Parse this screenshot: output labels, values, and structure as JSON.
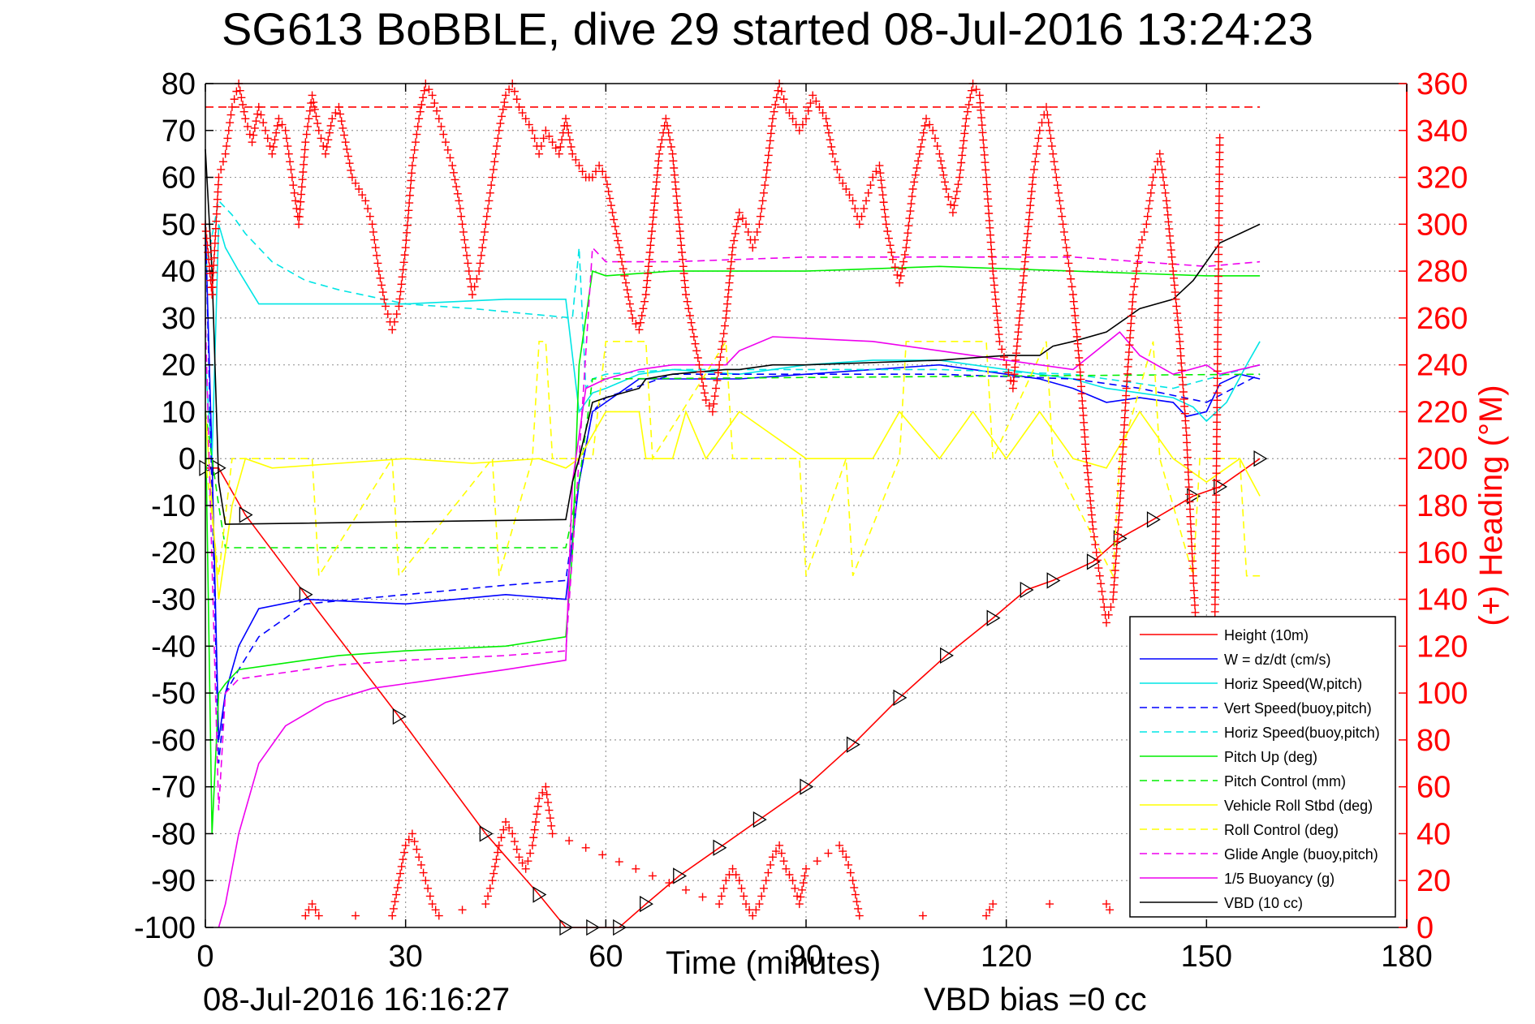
{
  "chart_data": {
    "type": "line",
    "title": "SG613 BoBBLE, dive 29 started 08-Jul-2016 13:24:23",
    "xlabel": "Time (minutes)",
    "ylabel": "",
    "y2label": "(+) Heading (°M)",
    "xlim": [
      0,
      180
    ],
    "ylim": [
      -100,
      80
    ],
    "y2lim": [
      0,
      360
    ],
    "xticks": [
      "0",
      "30",
      "60",
      "90",
      "120",
      "150",
      "180"
    ],
    "yticks": [
      "80",
      "70",
      "60",
      "50",
      "40",
      "30",
      "20",
      "10",
      "0",
      "-10",
      "-20",
      "-30",
      "-40",
      "-50",
      "-60",
      "-70",
      "-80",
      "-90",
      "-100"
    ],
    "y2ticks": [
      "360",
      "340",
      "320",
      "300",
      "280",
      "260",
      "240",
      "220",
      "200",
      "180",
      "160",
      "140",
      "120",
      "100",
      "80",
      "60",
      "40",
      "20",
      "0"
    ],
    "grid": true,
    "legend_position": "bottom-right",
    "footer_time": "08-Jul-2016 16:16:27",
    "footer_bias": "VBD bias =0 cc",
    "series": [
      {
        "name": "Height (10m)",
        "color": "#ff0000",
        "style": "solid",
        "marker": "triangle",
        "x": [
          0,
          2,
          6,
          15,
          29,
          42,
          50,
          54,
          58,
          62,
          66,
          71,
          77,
          83,
          90,
          97,
          104,
          111,
          118,
          123,
          127,
          133,
          137,
          142,
          148,
          152,
          158
        ],
        "y": [
          -2,
          -2,
          -12,
          -29,
          -55,
          -80,
          -93,
          -100,
          -100,
          -100,
          -95,
          -89,
          -83,
          -77,
          -70,
          -61,
          -51,
          -42,
          -34,
          -28,
          -26,
          -22,
          -17,
          -13,
          -8,
          -6,
          0
        ]
      },
      {
        "name": "W = dz/dt (cm/s)",
        "color": "#0000ff",
        "style": "solid",
        "x": [
          0,
          1,
          2,
          3,
          5,
          8,
          15,
          30,
          45,
          54,
          56,
          58,
          60,
          65,
          70,
          80,
          90,
          100,
          110,
          120,
          125,
          130,
          135,
          140,
          145,
          147,
          150,
          152,
          155,
          158
        ],
        "y": [
          50,
          0,
          -60,
          -50,
          -40,
          -32,
          -30,
          -31,
          -29,
          -30,
          -5,
          10,
          12,
          17,
          17,
          17,
          18,
          19,
          20,
          18,
          17,
          15,
          12,
          13,
          12,
          9,
          10,
          16,
          18,
          17
        ]
      },
      {
        "name": "Horiz Speed(W,pitch)",
        "color": "#00e5e5",
        "style": "solid",
        "x": [
          0,
          1,
          2,
          3,
          5,
          8,
          15,
          30,
          45,
          54,
          56,
          58,
          60,
          65,
          70,
          80,
          90,
          100,
          110,
          120,
          125,
          130,
          135,
          140,
          145,
          148,
          150,
          153,
          156,
          158
        ],
        "y": [
          20,
          0,
          50,
          45,
          40,
          33,
          33,
          33,
          34,
          34,
          10,
          14,
          15,
          18,
          19,
          18,
          20,
          21,
          21,
          19,
          18,
          17,
          15,
          14,
          13,
          11,
          8,
          12,
          20,
          25
        ]
      },
      {
        "name": "Vert Speed(buoy,pitch)",
        "color": "#0000ff",
        "style": "dashed",
        "x": [
          0,
          2,
          3,
          5,
          8,
          15,
          30,
          45,
          54,
          56,
          58,
          60,
          70,
          90,
          110,
          130,
          140,
          150,
          158
        ],
        "y": [
          50,
          -65,
          -50,
          -45,
          -38,
          -31,
          -29,
          -27,
          -26,
          -5,
          10,
          13,
          18,
          18,
          18,
          17,
          15,
          12,
          18
        ]
      },
      {
        "name": "Horiz Speed(buoy,pitch)",
        "color": "#00e5e5",
        "style": "dashed",
        "x": [
          0,
          2,
          4,
          6,
          10,
          15,
          20,
          30,
          40,
          55,
          56,
          57,
          58,
          60,
          70,
          90,
          110,
          130,
          145,
          158
        ],
        "y": [
          40,
          55,
          52,
          48,
          42,
          38,
          36,
          33,
          32,
          30,
          45,
          15,
          17,
          18,
          19,
          19,
          19,
          18,
          15,
          20
        ]
      },
      {
        "name": "Pitch Up (deg)",
        "color": "#00ee00",
        "style": "solid",
        "x": [
          0,
          1,
          2,
          3,
          5,
          10,
          20,
          30,
          45,
          54,
          55,
          56,
          58,
          60,
          70,
          90,
          110,
          130,
          150,
          158
        ],
        "y": [
          10,
          -80,
          -50,
          -48,
          -45,
          -44,
          -42,
          -41,
          -40,
          -38,
          -20,
          20,
          40,
          39,
          40,
          40,
          41,
          40,
          39,
          39
        ]
      },
      {
        "name": "Pitch Control (mm)",
        "color": "#00ee00",
        "style": "dashed",
        "x": [
          0,
          2,
          3,
          54,
          56,
          58,
          60,
          158
        ],
        "y": [
          10,
          -10,
          -19,
          -19,
          -5,
          17,
          17,
          18
        ]
      },
      {
        "name": "Vehicle Roll Stbd (deg)",
        "color": "#ffff00",
        "style": "solid",
        "x": [
          0,
          2,
          4,
          6,
          10,
          20,
          30,
          40,
          50,
          54,
          56,
          60,
          65,
          66,
          70,
          72,
          75,
          80,
          90,
          100,
          104,
          110,
          115,
          120,
          125,
          130,
          135,
          140,
          145,
          150,
          155,
          158
        ],
        "y": [
          10,
          -30,
          -10,
          0,
          -2,
          -1,
          0,
          -1,
          0,
          -2,
          0,
          10,
          10,
          0,
          0,
          10,
          0,
          10,
          0,
          0,
          10,
          0,
          10,
          0,
          10,
          0,
          -2,
          10,
          0,
          -5,
          0,
          -8
        ]
      },
      {
        "name": "Roll Control (deg)",
        "color": "#ffff00",
        "style": "dashed",
        "x": [
          0,
          2,
          4,
          16,
          17,
          28,
          29,
          43,
          44,
          49,
          50,
          51,
          52,
          58,
          60,
          66,
          67,
          78,
          79,
          89,
          90,
          96,
          97,
          104,
          105,
          117,
          118,
          126,
          127,
          136,
          137,
          142,
          143,
          148,
          149,
          155,
          156,
          158
        ],
        "y": [
          0,
          -25,
          0,
          0,
          -25,
          0,
          -25,
          0,
          -25,
          0,
          25,
          25,
          0,
          0,
          25,
          25,
          0,
          25,
          0,
          0,
          -25,
          0,
          -25,
          0,
          25,
          25,
          0,
          25,
          0,
          -25,
          0,
          25,
          0,
          -25,
          0,
          0,
          -25,
          -25
        ]
      },
      {
        "name": "Glide Angle (buoy,pitch)",
        "color": "#ee00ee",
        "style": "dashed",
        "x": [
          0,
          2,
          3,
          5,
          10,
          20,
          30,
          45,
          54,
          56,
          58,
          60,
          70,
          90,
          110,
          130,
          150,
          158
        ],
        "y": [
          30,
          -75,
          -50,
          -47,
          -46,
          -44,
          -43,
          -42,
          -41,
          0,
          45,
          42,
          42,
          43,
          43,
          43,
          41,
          42
        ]
      },
      {
        "name": "1/5 Buoyancy (g)",
        "color": "#ee00ee",
        "style": "solid",
        "x": [
          2,
          3,
          5,
          8,
          12,
          18,
          25,
          35,
          45,
          54,
          55,
          57,
          60,
          65,
          70,
          78,
          80,
          85,
          100,
          110,
          120,
          130,
          137,
          140,
          145,
          150,
          152,
          158
        ],
        "y": [
          -100,
          -95,
          -80,
          -65,
          -57,
          -52,
          -49,
          -47,
          -45,
          -43,
          -5,
          15,
          17,
          19,
          20,
          20,
          23,
          26,
          25,
          23,
          21,
          19,
          27,
          22,
          18,
          20,
          18,
          20
        ]
      },
      {
        "name": "VBD (10 cc)",
        "color": "#000000",
        "style": "solid",
        "x": [
          0,
          1,
          2,
          3,
          54,
          55,
          56,
          58,
          60,
          65,
          66,
          70,
          78,
          80,
          85,
          90,
          110,
          120,
          125,
          127,
          130,
          135,
          140,
          145,
          148,
          150,
          152,
          155,
          158
        ],
        "y": [
          66,
          40,
          -5,
          -14,
          -13,
          -5,
          0,
          12,
          13,
          15,
          17,
          18,
          19,
          19,
          20,
          20,
          21,
          22,
          22,
          24,
          25,
          27,
          32,
          34,
          38,
          42,
          46,
          48,
          50
        ]
      }
    ],
    "heading": {
      "name": "(+) Heading",
      "color": "#ff0000",
      "marker": "plus",
      "target": 350,
      "x": [
        0,
        1,
        2,
        3,
        4,
        5,
        6,
        7,
        8,
        9,
        10,
        11,
        12,
        13,
        14,
        15,
        16,
        17,
        18,
        19,
        20,
        21,
        22,
        23,
        24,
        25,
        26,
        27,
        28,
        29,
        30,
        31,
        32,
        33,
        34,
        35,
        36,
        37,
        38,
        39,
        40,
        41,
        42,
        43,
        44,
        45,
        46,
        47,
        48,
        49,
        50,
        51,
        52,
        53,
        54,
        55,
        56,
        57,
        58,
        59,
        60,
        61,
        62,
        63,
        64,
        65,
        66,
        67,
        68,
        69,
        70,
        71,
        72,
        73,
        74,
        75,
        76,
        77,
        78,
        79,
        80,
        81,
        82,
        83,
        84,
        85,
        86,
        87,
        88,
        89,
        90,
        91,
        92,
        93,
        94,
        95,
        96,
        97,
        98,
        99,
        100,
        101,
        102,
        103,
        104,
        105,
        106,
        107,
        108,
        109,
        110,
        111,
        112,
        113,
        114,
        115,
        116,
        117,
        118,
        119,
        120,
        121,
        122,
        123,
        124,
        125,
        126,
        127,
        128,
        129,
        130,
        131,
        132,
        133,
        134,
        135,
        136,
        137,
        138,
        139,
        140,
        141,
        142,
        143,
        144,
        145,
        146,
        147,
        148,
        149,
        150,
        151,
        152
      ],
      "y": [
        300,
        270,
        320,
        330,
        350,
        360,
        345,
        335,
        350,
        340,
        330,
        345,
        340,
        320,
        300,
        335,
        355,
        340,
        330,
        345,
        350,
        335,
        320,
        315,
        310,
        300,
        280,
        265,
        255,
        265,
        290,
        325,
        345,
        360,
        355,
        345,
        335,
        325,
        310,
        290,
        270,
        280,
        300,
        320,
        340,
        355,
        360,
        350,
        345,
        340,
        330,
        340,
        335,
        330,
        345,
        330,
        325,
        320,
        320,
        325,
        320,
        305,
        290,
        275,
        260,
        255,
        270,
        300,
        330,
        345,
        330,
        300,
        270,
        255,
        240,
        225,
        220,
        240,
        260,
        290,
        305,
        300,
        290,
        300,
        320,
        345,
        360,
        350,
        345,
        340,
        345,
        355,
        350,
        345,
        330,
        320,
        315,
        310,
        300,
        310,
        320,
        325,
        300,
        285,
        275,
        290,
        315,
        330,
        345,
        340,
        330,
        315,
        305,
        320,
        345,
        360,
        355,
        320,
        280,
        250,
        240,
        230,
        260,
        290,
        320,
        340,
        350,
        330,
        310,
        290,
        270,
        240,
        200,
        170,
        150,
        130,
        140,
        180,
        230,
        270,
        290,
        300,
        320,
        330,
        310,
        280,
        250,
        210,
        150,
        100,
        80,
        60,
        340
      ]
    },
    "heading_lower_bursts": {
      "x": [
        15,
        16,
        17,
        28,
        29,
        30,
        31,
        32,
        33,
        34,
        35,
        42,
        43,
        44,
        45,
        46,
        47,
        48,
        49,
        50,
        51,
        52,
        77,
        78,
        79,
        80,
        81,
        82,
        83,
        84,
        85,
        86,
        87,
        88,
        89,
        90,
        95,
        96,
        97,
        98,
        117,
        118,
        135,
        136
      ],
      "y": [
        5,
        10,
        5,
        5,
        20,
        35,
        40,
        30,
        20,
        10,
        5,
        10,
        20,
        35,
        45,
        40,
        30,
        25,
        35,
        55,
        60,
        40,
        10,
        20,
        25,
        20,
        10,
        5,
        10,
        20,
        30,
        35,
        25,
        20,
        10,
        25,
        35,
        30,
        20,
        5,
        5,
        10,
        10,
        5
      ]
    }
  }
}
